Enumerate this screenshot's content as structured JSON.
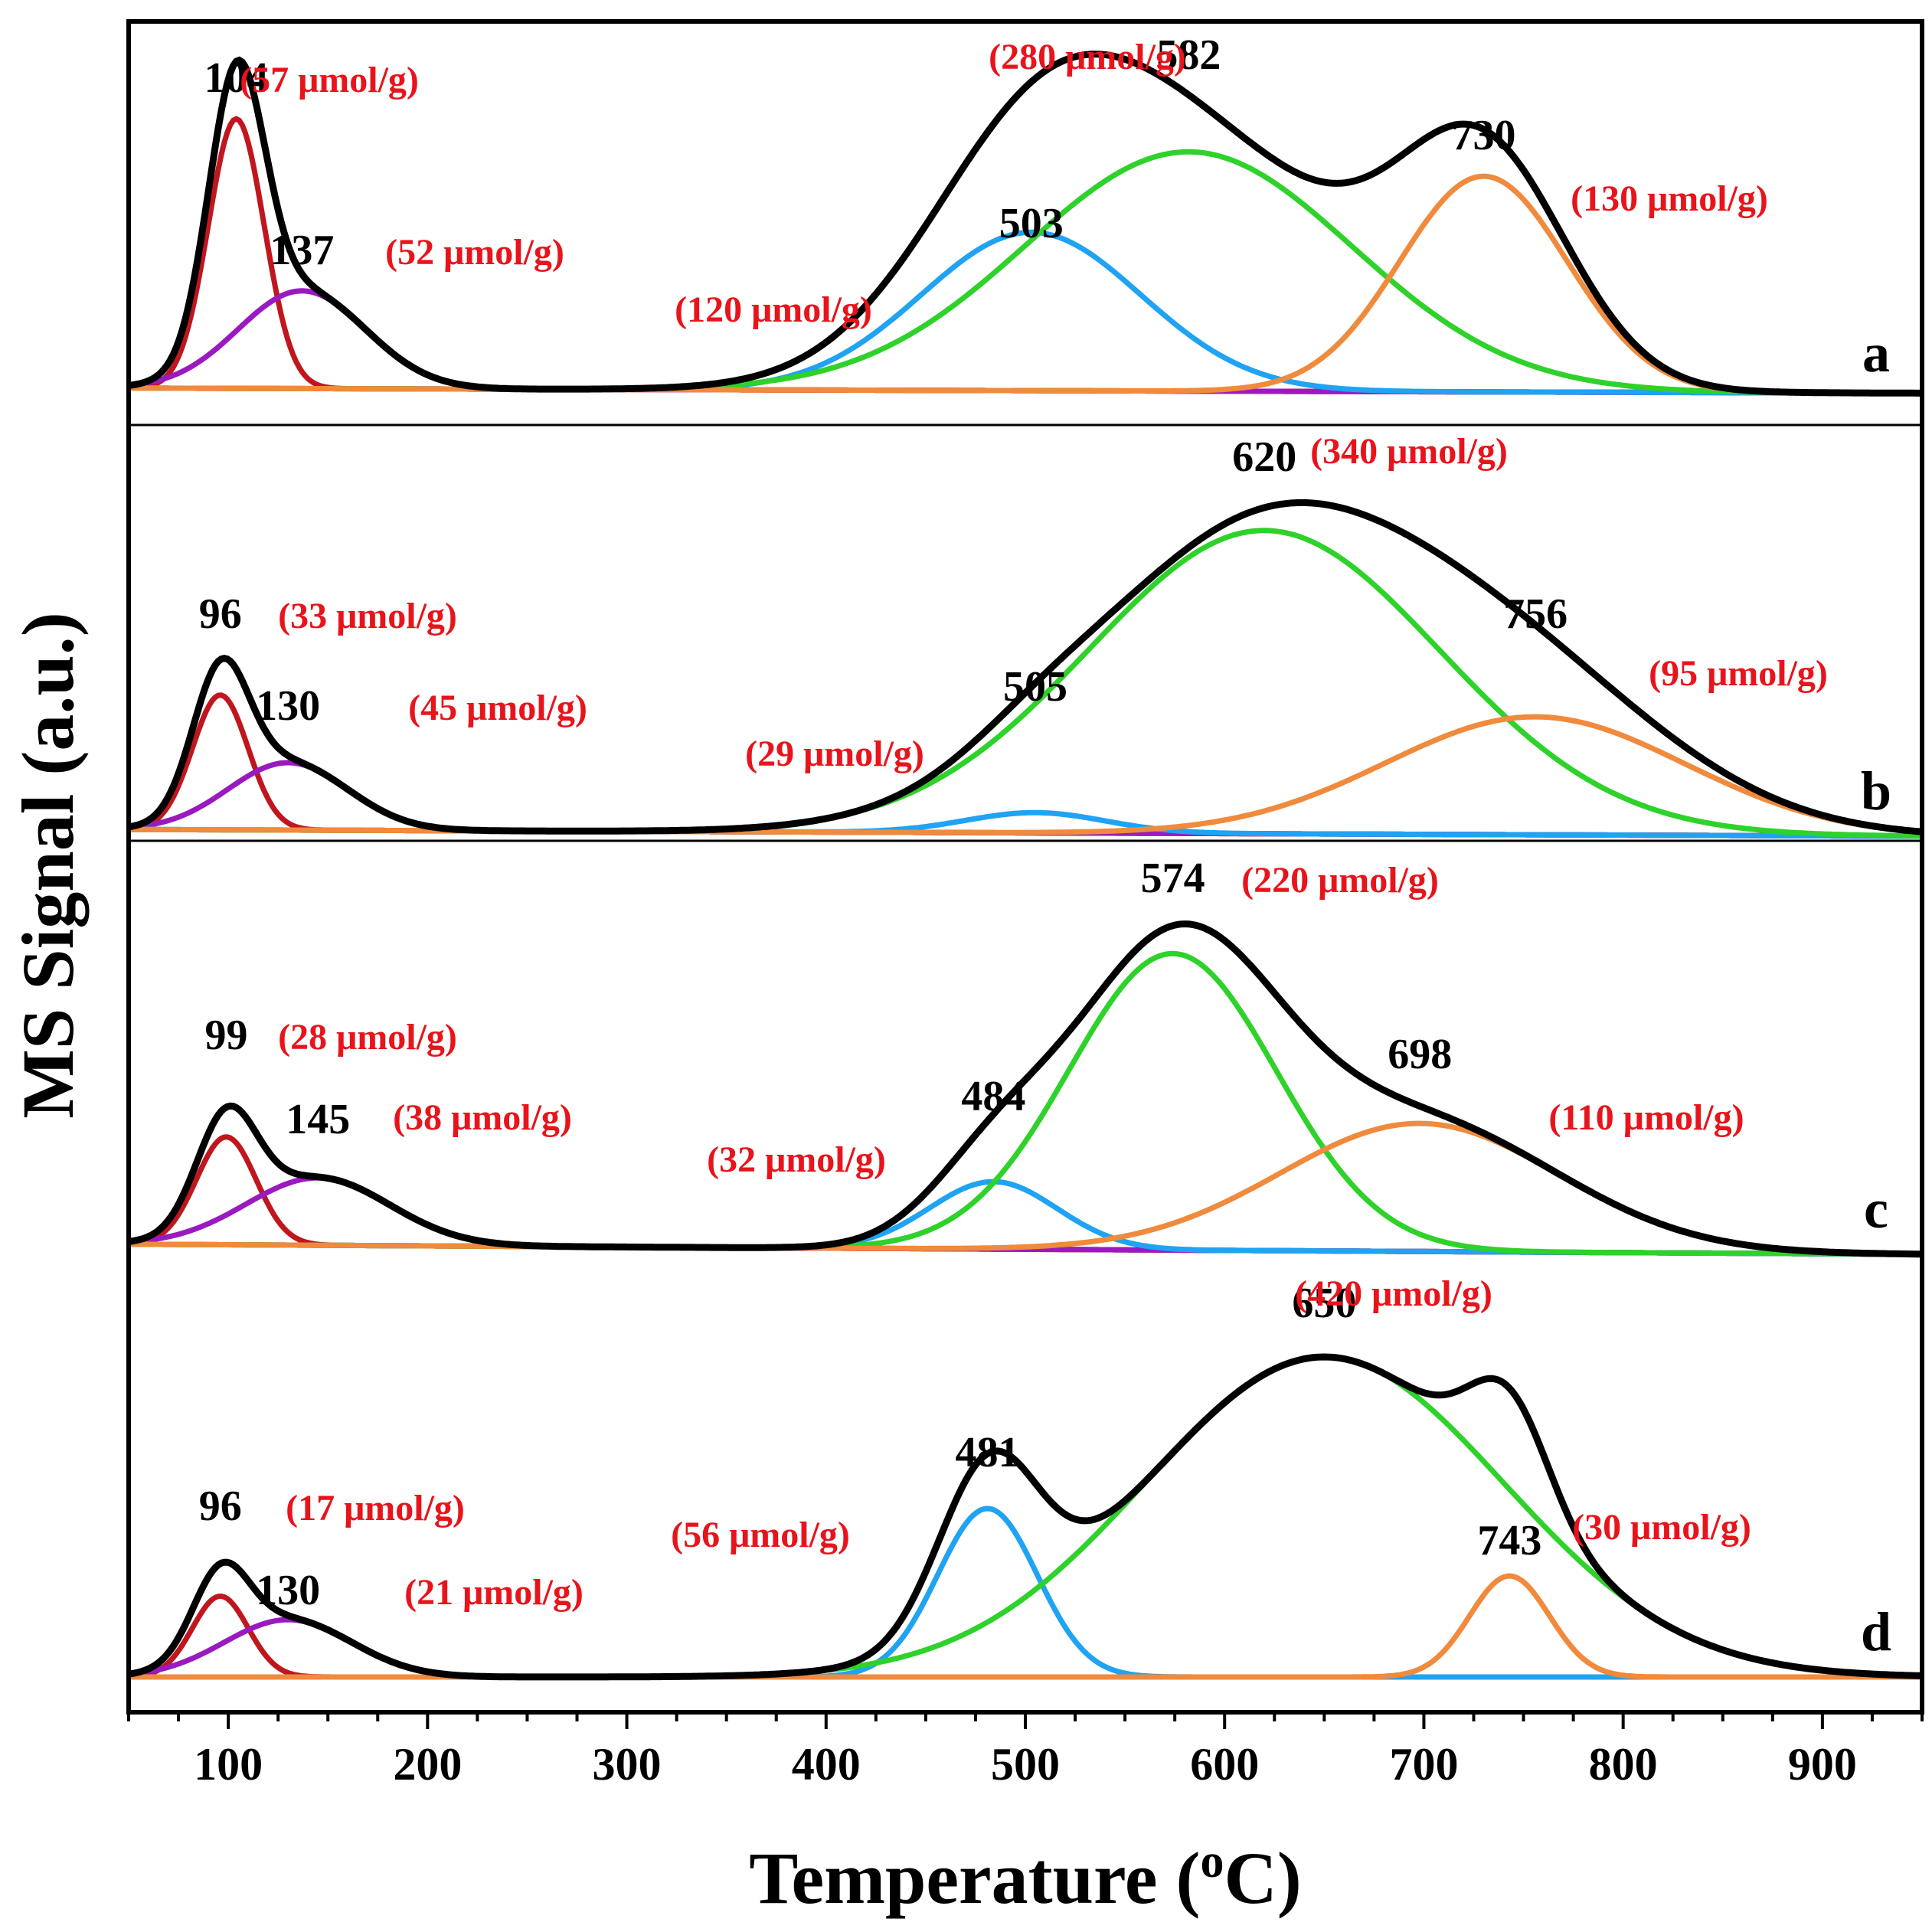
{
  "chart_data": {
    "type": "line",
    "title": "",
    "xlabel": "Temperature (",
    "xlabel_sup": "o",
    "xlabel_end": "C)",
    "ylabel": "MS Signal (a.u.)",
    "xlim": [
      50,
      950
    ],
    "xticks": [
      100,
      200,
      300,
      400,
      500,
      600,
      700,
      800,
      900
    ],
    "colors": {
      "total": "#000000",
      "red": "#c0161e",
      "purple": "#9a1ac0",
      "blue": "#1fa3f2",
      "green": "#2ed22a",
      "orange": "#f08a3c",
      "annotation": "#e8141c"
    },
    "panels": [
      {
        "id": "a",
        "label": "a",
        "baseline": [
          0.03,
          0.015
        ],
        "peaks": [
          {
            "center": 104,
            "height": 0.8,
            "sigma": 14,
            "color": "red",
            "temp_label": "104",
            "amount_label": "(57 μmol/g)"
          },
          {
            "center": 137,
            "height": 0.29,
            "sigma": 32,
            "color": "purple",
            "temp_label": "137",
            "amount_label": "(52 μmol/g)"
          },
          {
            "center": 503,
            "height": 0.47,
            "sigma": 55,
            "color": "blue",
            "temp_label": "503",
            "amount_label": "(120 μmol/g)"
          },
          {
            "center": 582,
            "height": 0.71,
            "sigma": 82,
            "color": "green",
            "temp_label": "582",
            "amount_label": "(280 μmol/g)"
          },
          {
            "center": 730,
            "height": 0.64,
            "sigma": 42,
            "color": "orange",
            "temp_label": "730",
            "amount_label": "(130 μmol/g)"
          }
        ]
      },
      {
        "id": "b",
        "label": "b",
        "baseline": [
          0.02,
          0.0
        ],
        "peaks": [
          {
            "center": 96,
            "height": 0.4,
            "sigma": 14,
            "color": "red",
            "temp_label": "96",
            "amount_label": "(33 μmol/g)"
          },
          {
            "center": 130,
            "height": 0.2,
            "sigma": 30,
            "color": "purple",
            "temp_label": "130",
            "amount_label": "(45 μmol/g)"
          },
          {
            "center": 505,
            "height": 0.06,
            "sigma": 35,
            "color": "blue",
            "temp_label": "505",
            "amount_label": "(29 μmol/g)"
          },
          {
            "center": 620,
            "height": 0.9,
            "sigma": 88,
            "color": "green",
            "temp_label": "620",
            "amount_label": "(340 μmol/g)"
          },
          {
            "center": 756,
            "height": 0.35,
            "sigma": 75,
            "color": "orange",
            "temp_label": "756",
            "amount_label": "(95 μmol/g)"
          }
        ]
      },
      {
        "id": "c",
        "label": "c",
        "baseline": [
          0.03,
          0.0
        ],
        "peaks": [
          {
            "center": 99,
            "height": 0.32,
            "sigma": 15,
            "color": "red",
            "temp_label": "99",
            "amount_label": "(28 μmol/g)"
          },
          {
            "center": 145,
            "height": 0.2,
            "sigma": 36,
            "color": "purple",
            "temp_label": "145",
            "amount_label": "(38 μmol/g)"
          },
          {
            "center": 484,
            "height": 0.2,
            "sigma": 32,
            "color": "blue",
            "temp_label": "484",
            "amount_label": "(32 μmol/g)"
          },
          {
            "center": 574,
            "height": 0.88,
            "sigma": 52,
            "color": "green",
            "temp_label": "574",
            "amount_label": "(220 μmol/g)"
          },
          {
            "center": 698,
            "height": 0.38,
            "sigma": 70,
            "color": "orange",
            "temp_label": "698",
            "amount_label": "(110 μmol/g)"
          }
        ]
      },
      {
        "id": "d",
        "label": "d",
        "baseline": [
          0.0,
          0.0
        ],
        "peaks": [
          {
            "center": 96,
            "height": 0.24,
            "sigma": 14,
            "color": "red",
            "temp_label": "96",
            "amount_label": "(17 μmol/g)"
          },
          {
            "center": 130,
            "height": 0.17,
            "sigma": 32,
            "color": "purple",
            "temp_label": "130",
            "amount_label": "(21 μmol/g)"
          },
          {
            "center": 481,
            "height": 0.5,
            "sigma": 25,
            "color": "blue",
            "temp_label": "481",
            "amount_label": "(56 μmol/g)"
          },
          {
            "center": 650,
            "height": 0.95,
            "sigma": 90,
            "color": "green",
            "temp_label": "650",
            "amount_label": "(420 μmol/g)"
          },
          {
            "center": 743,
            "height": 0.3,
            "sigma": 20,
            "color": "orange",
            "temp_label": "743",
            "amount_label": "(30 μmol/g)"
          }
        ]
      }
    ]
  }
}
